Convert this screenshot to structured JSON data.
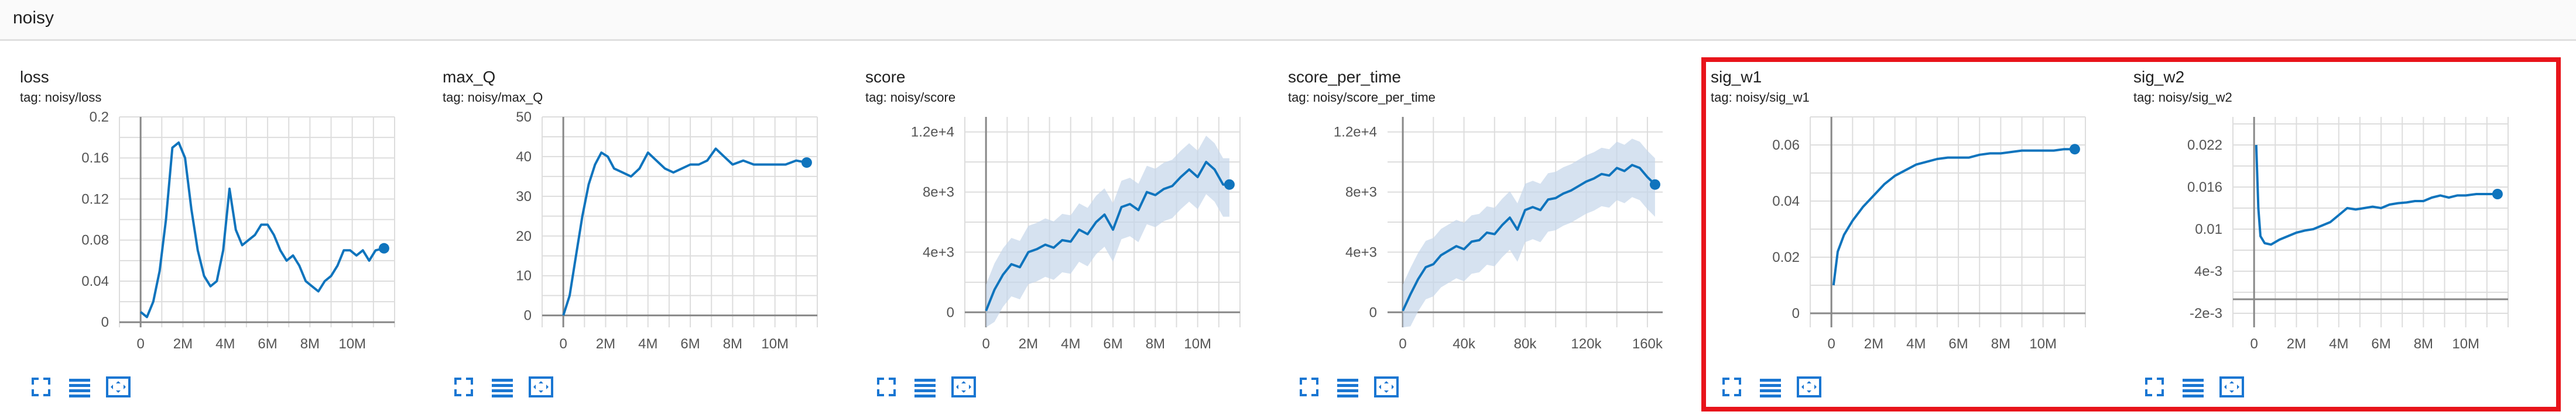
{
  "group": {
    "title": "noisy"
  },
  "colors": {
    "line": "#0f74bd",
    "band": "#c5d5ea",
    "grid": "#dddddd",
    "axis": "#888888",
    "highlight": "#e8141b",
    "icon": "#1976d2"
  },
  "icons": {
    "fullscreen": "fullscreen-icon",
    "data": "data-table-icon",
    "fit": "fit-domain-icon"
  },
  "chart_data": [
    {
      "type": "line",
      "title": "loss",
      "tag": "tag: noisy/loss",
      "xlim": [
        -1000000,
        12000000
      ],
      "ylim": [
        -0.005,
        0.2
      ],
      "xticks": [
        {
          "v": 0,
          "label": "0"
        },
        {
          "v": 2000000,
          "label": "2M"
        },
        {
          "v": 4000000,
          "label": "4M"
        },
        {
          "v": 6000000,
          "label": "6M"
        },
        {
          "v": 8000000,
          "label": "8M"
        },
        {
          "v": 10000000,
          "label": "10M"
        }
      ],
      "yticks": [
        {
          "v": 0,
          "label": "0"
        },
        {
          "v": 0.04,
          "label": "0.04"
        },
        {
          "v": 0.08,
          "label": "0.08"
        },
        {
          "v": 0.12,
          "label": "0.12"
        },
        {
          "v": 0.16,
          "label": "0.16"
        },
        {
          "v": 0.2,
          "label": "0.2"
        }
      ],
      "x": [
        0,
        300000,
        600000,
        900000,
        1200000,
        1500000,
        1800000,
        2100000,
        2400000,
        2700000,
        3000000,
        3300000,
        3600000,
        3900000,
        4200000,
        4500000,
        4800000,
        5100000,
        5400000,
        5700000,
        6000000,
        6300000,
        6600000,
        6900000,
        7200000,
        7500000,
        7800000,
        8100000,
        8400000,
        8700000,
        9000000,
        9300000,
        9600000,
        9900000,
        10200000,
        10500000,
        10800000,
        11100000,
        11500000
      ],
      "y": [
        0.01,
        0.005,
        0.02,
        0.05,
        0.1,
        0.17,
        0.175,
        0.16,
        0.11,
        0.07,
        0.045,
        0.035,
        0.04,
        0.07,
        0.13,
        0.09,
        0.075,
        0.08,
        0.085,
        0.095,
        0.095,
        0.085,
        0.07,
        0.06,
        0.065,
        0.055,
        0.04,
        0.035,
        0.03,
        0.04,
        0.045,
        0.055,
        0.07,
        0.07,
        0.065,
        0.07,
        0.06,
        0.07,
        0.072
      ],
      "band": false
    },
    {
      "type": "line",
      "title": "max_Q",
      "tag": "tag: noisy/max_Q",
      "xlim": [
        -1000000,
        12000000
      ],
      "ylim": [
        -3,
        50
      ],
      "xticks": [
        {
          "v": 0,
          "label": "0"
        },
        {
          "v": 2000000,
          "label": "2M"
        },
        {
          "v": 4000000,
          "label": "4M"
        },
        {
          "v": 6000000,
          "label": "6M"
        },
        {
          "v": 8000000,
          "label": "8M"
        },
        {
          "v": 10000000,
          "label": "10M"
        }
      ],
      "yticks": [
        {
          "v": 0,
          "label": "0"
        },
        {
          "v": 10,
          "label": "10"
        },
        {
          "v": 20,
          "label": "20"
        },
        {
          "v": 30,
          "label": "30"
        },
        {
          "v": 40,
          "label": "40"
        },
        {
          "v": 50,
          "label": "50"
        }
      ],
      "x": [
        0,
        300000,
        600000,
        900000,
        1200000,
        1500000,
        1800000,
        2100000,
        2400000,
        2800000,
        3200000,
        3600000,
        4000000,
        4400000,
        4800000,
        5200000,
        5600000,
        6000000,
        6400000,
        6800000,
        7200000,
        7600000,
        8000000,
        8500000,
        9000000,
        9500000,
        10000000,
        10500000,
        11000000,
        11500000
      ],
      "y": [
        0,
        5,
        15,
        25,
        33,
        38,
        41,
        40,
        37,
        36,
        35,
        37,
        41,
        39,
        37,
        36,
        37,
        38,
        38,
        39,
        42,
        40,
        38,
        39,
        38,
        38,
        38,
        38,
        39,
        38.5
      ],
      "band": false
    },
    {
      "type": "line",
      "title": "score",
      "tag": "tag: noisy/score",
      "xlim": [
        -1000000,
        12000000
      ],
      "ylim": [
        -1000,
        13000
      ],
      "xticks": [
        {
          "v": 0,
          "label": "0"
        },
        {
          "v": 2000000,
          "label": "2M"
        },
        {
          "v": 4000000,
          "label": "4M"
        },
        {
          "v": 6000000,
          "label": "6M"
        },
        {
          "v": 8000000,
          "label": "8M"
        },
        {
          "v": 10000000,
          "label": "10M"
        }
      ],
      "yticks": [
        {
          "v": 0,
          "label": "0"
        },
        {
          "v": 4000,
          "label": "4e+3"
        },
        {
          "v": 8000,
          "label": "8e+3"
        },
        {
          "v": 12000,
          "label": "1.2e+4"
        }
      ],
      "x": [
        0,
        400000,
        800000,
        1200000,
        1600000,
        2000000,
        2400000,
        2800000,
        3200000,
        3600000,
        4000000,
        4400000,
        4800000,
        5200000,
        5600000,
        6000000,
        6400000,
        6800000,
        7200000,
        7600000,
        8000000,
        8400000,
        8800000,
        9200000,
        9600000,
        10000000,
        10400000,
        10800000,
        11200000,
        11500000
      ],
      "y": [
        100,
        1500,
        2500,
        3200,
        3000,
        4000,
        4200,
        4500,
        4300,
        4800,
        4700,
        5500,
        5200,
        6000,
        6500,
        5500,
        7000,
        7200,
        6800,
        8000,
        7800,
        8200,
        8400,
        9000,
        9500,
        9000,
        10000,
        9500,
        8500,
        8500
      ],
      "band": true
    },
    {
      "type": "line",
      "title": "score_per_time",
      "tag": "tag: noisy/score_per_time",
      "xlim": [
        -10000,
        170000
      ],
      "ylim": [
        -1000,
        13000
      ],
      "xticks": [
        {
          "v": 0,
          "label": "0"
        },
        {
          "v": 40000,
          "label": "40k"
        },
        {
          "v": 80000,
          "label": "80k"
        },
        {
          "v": 120000,
          "label": "120k"
        },
        {
          "v": 160000,
          "label": "160k"
        }
      ],
      "yticks": [
        {
          "v": 0,
          "label": "0"
        },
        {
          "v": 4000,
          "label": "4e+3"
        },
        {
          "v": 8000,
          "label": "8e+3"
        },
        {
          "v": 12000,
          "label": "1.2e+4"
        }
      ],
      "x": [
        0,
        5000,
        10000,
        15000,
        20000,
        25000,
        30000,
        35000,
        40000,
        45000,
        50000,
        55000,
        60000,
        65000,
        70000,
        75000,
        80000,
        85000,
        90000,
        95000,
        100000,
        105000,
        110000,
        115000,
        120000,
        125000,
        130000,
        135000,
        140000,
        145000,
        150000,
        155000,
        160000,
        165000
      ],
      "y": [
        100,
        1200,
        2200,
        3000,
        3200,
        3800,
        4100,
        4400,
        4200,
        4700,
        4800,
        5300,
        5200,
        5800,
        6300,
        5500,
        6800,
        7000,
        6800,
        7500,
        7600,
        7900,
        8100,
        8400,
        8700,
        8900,
        9200,
        9100,
        9600,
        9400,
        9800,
        9600,
        9000,
        8500
      ],
      "band": true
    },
    {
      "type": "line",
      "title": "sig_w1",
      "tag": "tag: noisy/sig_w1",
      "xlim": [
        -1000000,
        12000000
      ],
      "ylim": [
        -0.005,
        0.07
      ],
      "xticks": [
        {
          "v": 0,
          "label": "0"
        },
        {
          "v": 2000000,
          "label": "2M"
        },
        {
          "v": 4000000,
          "label": "4M"
        },
        {
          "v": 6000000,
          "label": "6M"
        },
        {
          "v": 8000000,
          "label": "8M"
        },
        {
          "v": 10000000,
          "label": "10M"
        }
      ],
      "yticks": [
        {
          "v": 0,
          "label": "0"
        },
        {
          "v": 0.02,
          "label": "0.02"
        },
        {
          "v": 0.04,
          "label": "0.04"
        },
        {
          "v": 0.06,
          "label": "0.06"
        }
      ],
      "x": [
        100000,
        300000,
        600000,
        1000000,
        1500000,
        2000000,
        2500000,
        3000000,
        3500000,
        4000000,
        4500000,
        5000000,
        5500000,
        6000000,
        6500000,
        7000000,
        7500000,
        8000000,
        8500000,
        9000000,
        9500000,
        10000000,
        10500000,
        11000000,
        11500000
      ],
      "y": [
        0.01,
        0.022,
        0.028,
        0.033,
        0.038,
        0.042,
        0.046,
        0.049,
        0.051,
        0.053,
        0.054,
        0.055,
        0.0555,
        0.0555,
        0.0555,
        0.0565,
        0.057,
        0.057,
        0.0575,
        0.058,
        0.058,
        0.058,
        0.058,
        0.0585,
        0.0585
      ],
      "band": false
    },
    {
      "type": "line",
      "title": "sig_w2",
      "tag": "tag: noisy/sig_w2",
      "xlim": [
        -1000000,
        12000000
      ],
      "ylim": [
        -0.004,
        0.026
      ],
      "xticks": [
        {
          "v": 0,
          "label": "0"
        },
        {
          "v": 2000000,
          "label": "2M"
        },
        {
          "v": 4000000,
          "label": "4M"
        },
        {
          "v": 6000000,
          "label": "6M"
        },
        {
          "v": 8000000,
          "label": "8M"
        },
        {
          "v": 10000000,
          "label": "10M"
        }
      ],
      "yticks": [
        {
          "v": -0.002,
          "label": "-2e-3"
        },
        {
          "v": 0.004,
          "label": "4e-3"
        },
        {
          "v": 0.01,
          "label": "0.01"
        },
        {
          "v": 0.016,
          "label": "0.016"
        },
        {
          "v": 0.022,
          "label": "0.022"
        }
      ],
      "x": [
        100000,
        200000,
        300000,
        500000,
        800000,
        1200000,
        1600000,
        2000000,
        2400000,
        2800000,
        3200000,
        3600000,
        4000000,
        4400000,
        4800000,
        5200000,
        5600000,
        6000000,
        6400000,
        6800000,
        7200000,
        7600000,
        8000000,
        8400000,
        8800000,
        9200000,
        9600000,
        10000000,
        10500000,
        11000000,
        11500000
      ],
      "y": [
        0.022,
        0.013,
        0.009,
        0.008,
        0.0078,
        0.0085,
        0.009,
        0.0095,
        0.0098,
        0.01,
        0.0105,
        0.011,
        0.012,
        0.013,
        0.0128,
        0.013,
        0.0132,
        0.013,
        0.0135,
        0.0137,
        0.0138,
        0.014,
        0.014,
        0.0145,
        0.0148,
        0.0145,
        0.0148,
        0.0148,
        0.015,
        0.015,
        0.015
      ],
      "band": false
    }
  ]
}
